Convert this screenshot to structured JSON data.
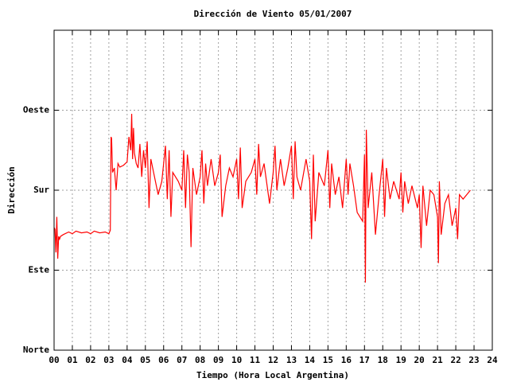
{
  "chart_data": {
    "type": "line",
    "title": "Dirección de Viento 05/01/2007",
    "x_label": "Tiempo (Hora Local Argentina)",
    "y_label": "Dirección",
    "xlim": [
      0,
      24
    ],
    "ylim": [
      0,
      360
    ],
    "grid": true,
    "xticks": [
      {
        "value": 0,
        "label": "00"
      },
      {
        "value": 1,
        "label": "01"
      },
      {
        "value": 2,
        "label": "02"
      },
      {
        "value": 3,
        "label": "03"
      },
      {
        "value": 4,
        "label": "04"
      },
      {
        "value": 5,
        "label": "05"
      },
      {
        "value": 6,
        "label": "06"
      },
      {
        "value": 7,
        "label": "07"
      },
      {
        "value": 8,
        "label": "08"
      },
      {
        "value": 9,
        "label": "09"
      },
      {
        "value": 10,
        "label": "10"
      },
      {
        "value": 11,
        "label": "11"
      },
      {
        "value": 12,
        "label": "12"
      },
      {
        "value": 13,
        "label": "13"
      },
      {
        "value": 14,
        "label": "14"
      },
      {
        "value": 15,
        "label": "15"
      },
      {
        "value": 16,
        "label": "16"
      },
      {
        "value": 17,
        "label": "17"
      },
      {
        "value": 18,
        "label": "18"
      },
      {
        "value": 19,
        "label": "19"
      },
      {
        "value": 20,
        "label": "20"
      },
      {
        "value": 21,
        "label": "21"
      },
      {
        "value": 22,
        "label": "22"
      },
      {
        "value": 23,
        "label": "23"
      },
      {
        "value": 24,
        "label": "24"
      }
    ],
    "yticks": [
      {
        "value": 0,
        "label": "Norte"
      },
      {
        "value": 90,
        "label": "Este"
      },
      {
        "value": 180,
        "label": "Sur"
      },
      {
        "value": 270,
        "label": "Oeste"
      }
    ],
    "color": "#ff0000",
    "x": [
      0,
      0.05,
      0.1,
      0.15,
      0.2,
      0.25,
      0.3,
      0.35,
      0.5,
      0.8,
      1.0,
      1.2,
      1.5,
      1.8,
      2.0,
      2.2,
      2.5,
      2.8,
      3.0,
      3.08,
      3.12,
      3.15,
      3.2,
      3.3,
      3.4,
      3.5,
      3.6,
      3.8,
      4.0,
      4.1,
      4.2,
      4.25,
      4.3,
      4.35,
      4.4,
      4.5,
      4.6,
      4.7,
      4.8,
      4.9,
      5.0,
      5.1,
      5.2,
      5.3,
      5.5,
      5.7,
      5.9,
      6.0,
      6.1,
      6.2,
      6.3,
      6.4,
      6.5,
      6.8,
      7.0,
      7.1,
      7.2,
      7.3,
      7.4,
      7.5,
      7.6,
      7.8,
      8.0,
      8.1,
      8.2,
      8.3,
      8.4,
      8.6,
      8.8,
      9.0,
      9.1,
      9.2,
      9.4,
      9.6,
      9.8,
      10.0,
      10.1,
      10.2,
      10.3,
      10.5,
      10.8,
      11.0,
      11.1,
      11.2,
      11.3,
      11.5,
      11.8,
      12.0,
      12.1,
      12.2,
      12.4,
      12.6,
      12.8,
      13.0,
      13.1,
      13.2,
      13.3,
      13.5,
      13.8,
      14.0,
      14.1,
      14.2,
      14.3,
      14.5,
      14.8,
      15.0,
      15.1,
      15.2,
      15.4,
      15.6,
      15.8,
      16.0,
      16.1,
      16.2,
      16.4,
      16.6,
      16.9,
      17.0,
      17.05,
      17.1,
      17.2,
      17.4,
      17.6,
      17.8,
      18.0,
      18.1,
      18.2,
      18.4,
      18.6,
      18.9,
      19.0,
      19.1,
      19.2,
      19.4,
      19.6,
      19.9,
      20.0,
      20.1,
      20.2,
      20.4,
      20.6,
      20.8,
      21.0,
      21.05,
      21.1,
      21.2,
      21.4,
      21.6,
      21.8,
      22.0,
      22.1,
      22.2,
      22.4,
      22.6,
      22.8
    ],
    "values": [
      138,
      136,
      110,
      150,
      103,
      128,
      125,
      128,
      130,
      133,
      131,
      134,
      132,
      133,
      131,
      134,
      132,
      133,
      131,
      135,
      240,
      238,
      200,
      205,
      180,
      210,
      206,
      208,
      212,
      240,
      225,
      266,
      215,
      250,
      222,
      210,
      205,
      232,
      195,
      225,
      205,
      235,
      160,
      215,
      195,
      175,
      190,
      210,
      230,
      170,
      225,
      150,
      200,
      190,
      180,
      225,
      160,
      220,
      200,
      116,
      205,
      175,
      195,
      225,
      165,
      210,
      185,
      215,
      185,
      200,
      220,
      150,
      185,
      205,
      195,
      215,
      170,
      228,
      160,
      190,
      200,
      215,
      175,
      232,
      195,
      210,
      165,
      200,
      230,
      180,
      215,
      185,
      205,
      230,
      170,
      235,
      195,
      180,
      215,
      190,
      125,
      220,
      145,
      200,
      185,
      225,
      160,
      210,
      175,
      195,
      160,
      215,
      175,
      210,
      185,
      155,
      145,
      220,
      76,
      248,
      160,
      200,
      130,
      175,
      215,
      150,
      205,
      170,
      190,
      170,
      200,
      155,
      190,
      165,
      185,
      160,
      175,
      115,
      185,
      140,
      180,
      175,
      150,
      98,
      190,
      130,
      165,
      175,
      140,
      160,
      125,
      175,
      170,
      175,
      180
    ]
  }
}
